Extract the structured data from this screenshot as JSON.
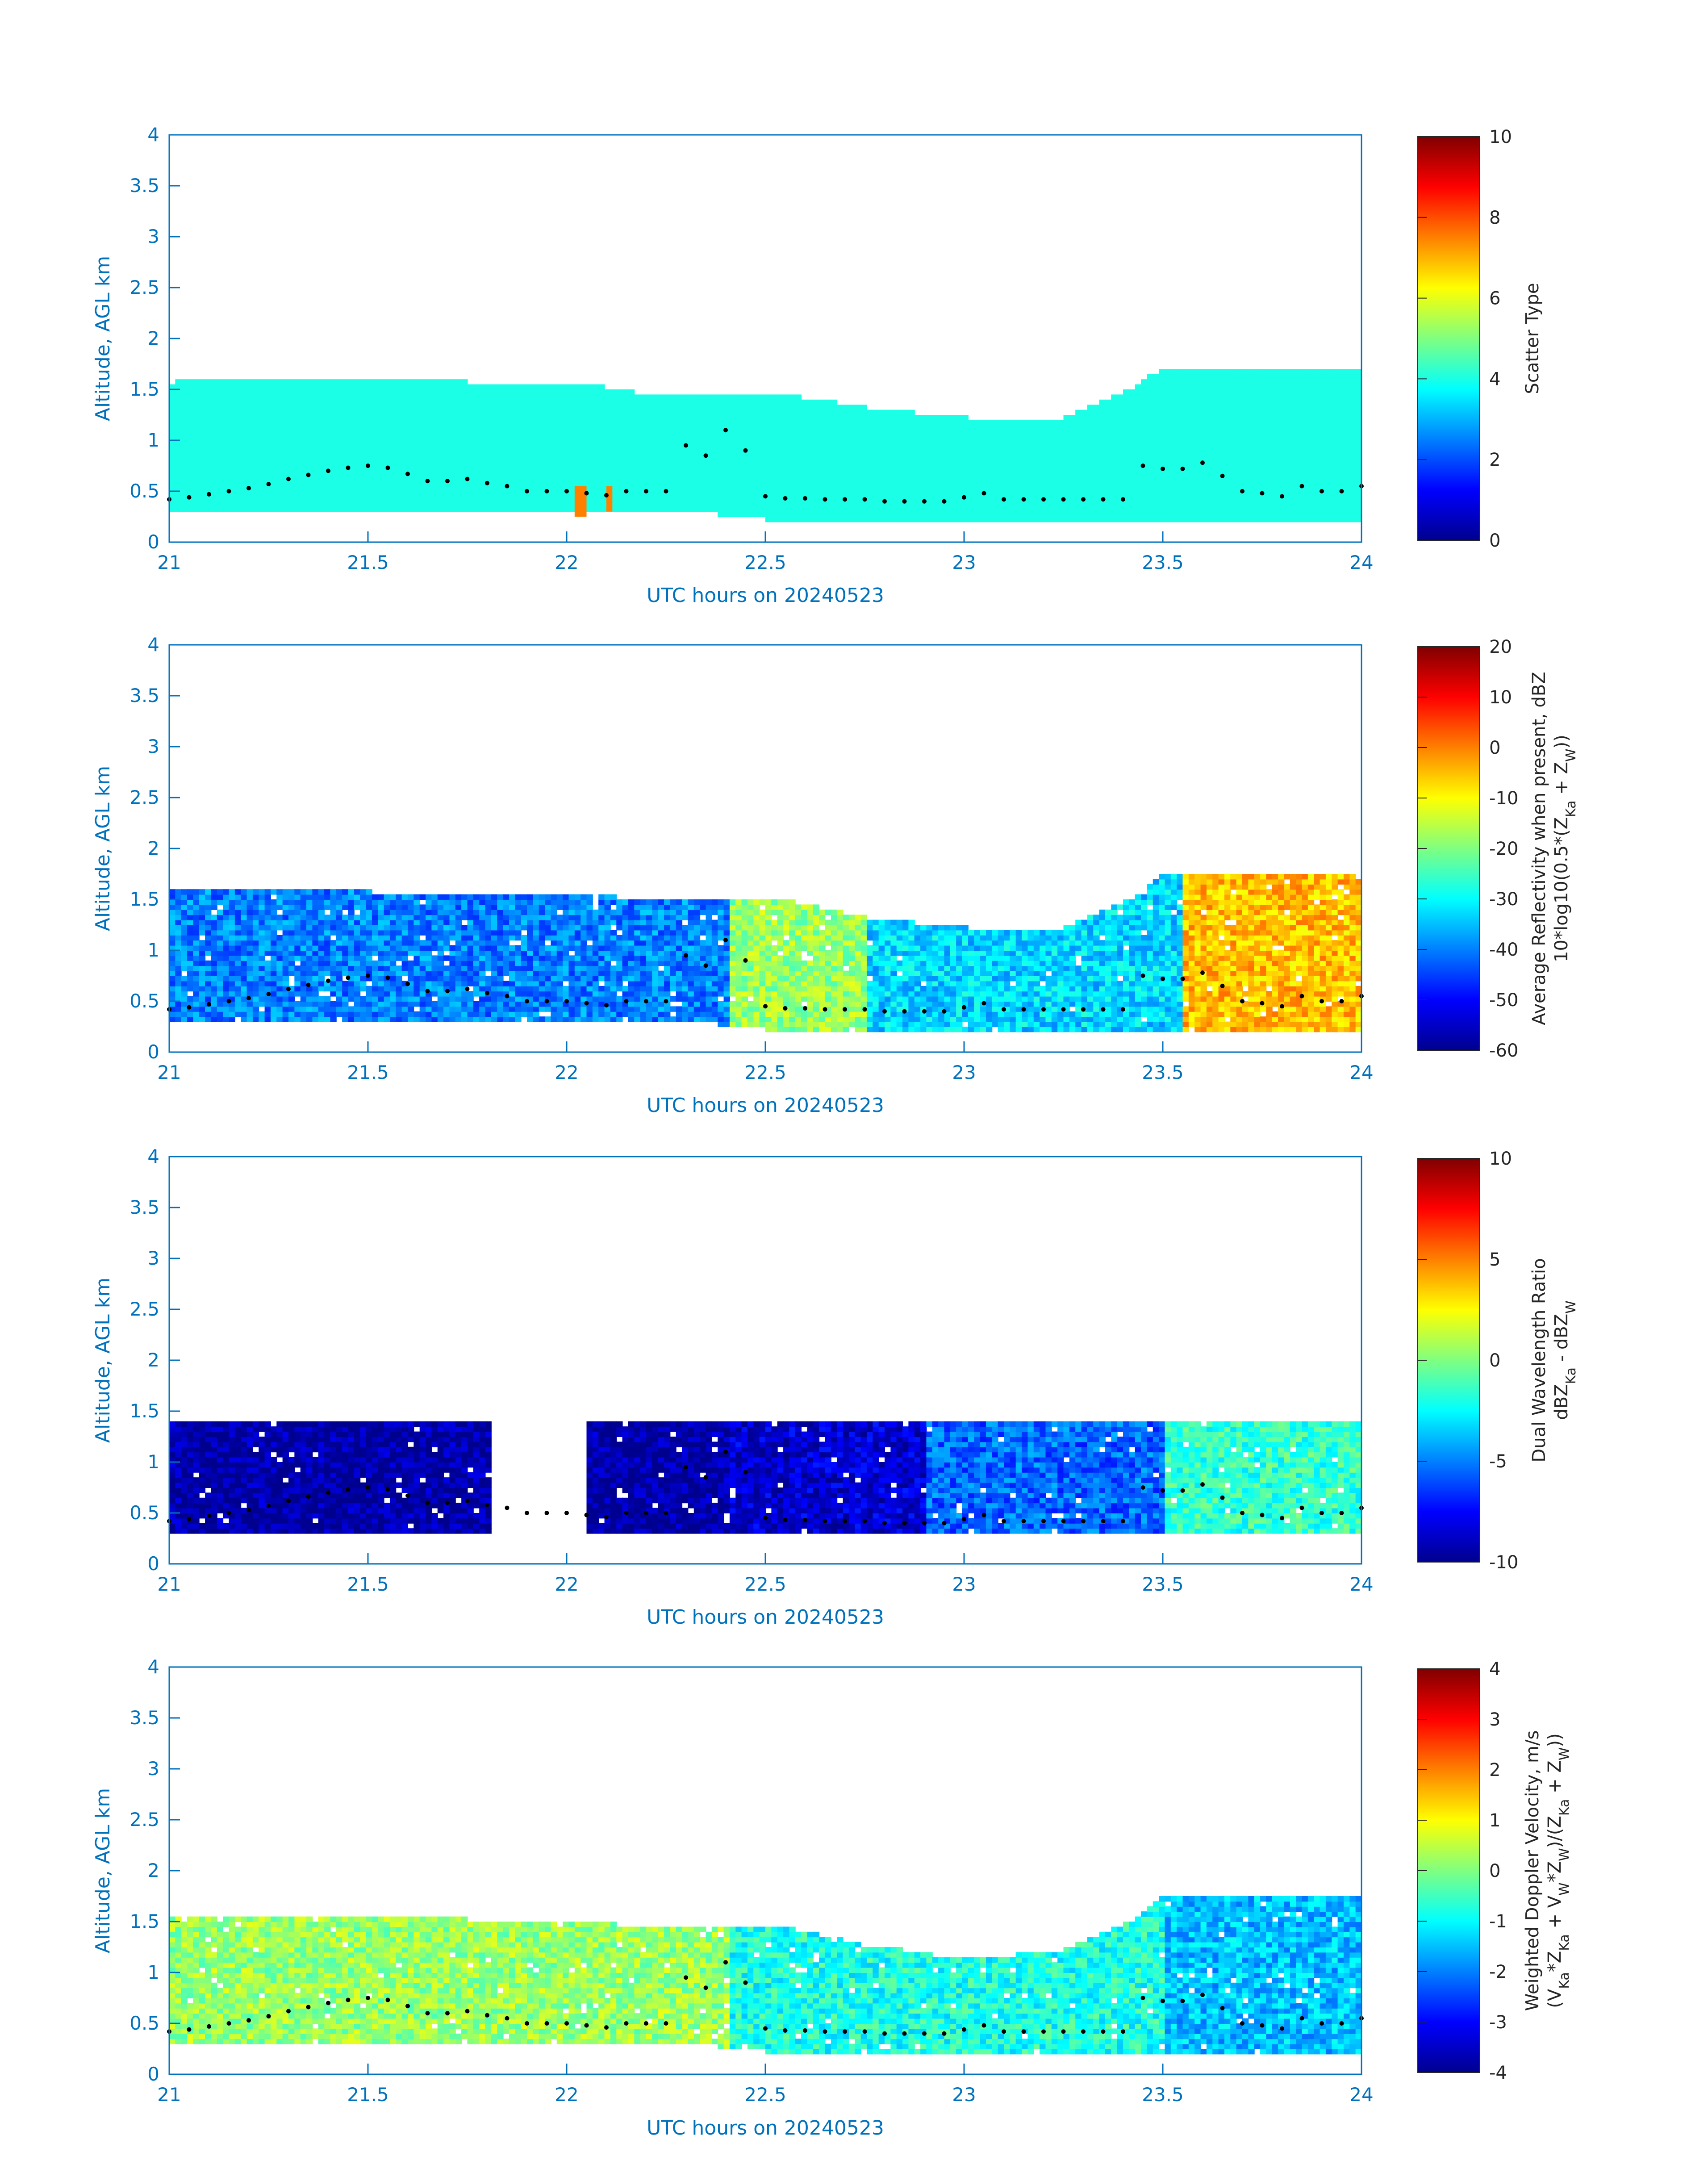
{
  "colors": {
    "axis": "#0072BD",
    "text": "#262626",
    "background": "#ffffff",
    "altitude_dots": "#000000",
    "colormap": [
      "#00008F",
      "#0000FF",
      "#0080FF",
      "#00FFFF",
      "#80FF80",
      "#FFFF00",
      "#FF8000",
      "#FF0000",
      "#800000"
    ]
  },
  "chart_data": [
    {
      "type": "heatmap",
      "name": "scatter-type",
      "xlabel": "UTC hours on 20240523",
      "ylabel": "Altitude, AGL km",
      "xlim": [
        21,
        24
      ],
      "ylim": [
        0,
        4
      ],
      "xticks": [
        "21",
        "21.5",
        "22",
        "22.5",
        "23",
        "23.5",
        "24"
      ],
      "yticks": [
        "0",
        "0.5",
        "1",
        "1.5",
        "2",
        "2.5",
        "3",
        "3.5",
        "4"
      ],
      "colorbar": {
        "title": "Scatter Type",
        "range": [
          0,
          10
        ],
        "ticks": [
          "0",
          "2",
          "4",
          "6",
          "8",
          "10"
        ]
      },
      "dominant_value": 4,
      "field_boundaries": {
        "x": [
          21.0,
          21.25,
          21.5,
          21.75,
          22.0,
          22.25,
          22.5,
          22.75,
          23.0,
          23.25,
          23.4,
          23.5,
          23.75,
          24.0
        ],
        "top_km": [
          1.55,
          1.6,
          1.6,
          1.55,
          1.55,
          1.4,
          1.45,
          1.3,
          1.2,
          1.2,
          1.45,
          1.7,
          1.7,
          1.7
        ],
        "base_km": [
          0.3,
          0.28,
          0.3,
          0.3,
          0.3,
          0.3,
          0.2,
          0.2,
          0.2,
          0.2,
          0.2,
          0.2,
          0.2,
          0.2
        ]
      },
      "highlight_cells": [
        {
          "x_start": 22.02,
          "x_end": 22.05,
          "y_start": 0.25,
          "y_end": 0.55,
          "value": 7.5
        },
        {
          "x_start": 22.1,
          "x_end": 22.115,
          "y_start": 0.3,
          "y_end": 0.55,
          "value": 7.5
        }
      ]
    },
    {
      "type": "heatmap",
      "name": "reflectivity",
      "xlabel": "UTC hours on 20240523",
      "ylabel": "Altitude, AGL km",
      "xlim": [
        21,
        24
      ],
      "ylim": [
        0,
        4
      ],
      "xticks": [
        "21",
        "21.5",
        "22",
        "22.5",
        "23",
        "23.5",
        "24"
      ],
      "yticks": [
        "0",
        "0.5",
        "1",
        "1.5",
        "2",
        "2.5",
        "3",
        "3.5",
        "4"
      ],
      "colorbar": {
        "title_line1": "Average Reflectivity when present, dBZ",
        "title_line2_main": "10*log10(0.5*(Z",
        "title_line2_sub1": "Ka",
        "title_line2_mid": " + Z",
        "title_line2_sub2": "W",
        "title_line2_end": "))",
        "range": [
          -60,
          20
        ],
        "ticks": [
          "-60",
          "-50",
          "-40",
          "-30",
          "-20",
          "-10",
          "0",
          "10",
          "20"
        ]
      },
      "field_boundaries": {
        "x": [
          21.0,
          21.25,
          21.5,
          21.75,
          22.0,
          22.25,
          22.5,
          22.75,
          23.0,
          23.25,
          23.4,
          23.5,
          23.75,
          24.0
        ],
        "top_km": [
          1.6,
          1.6,
          1.55,
          1.55,
          1.55,
          1.45,
          1.5,
          1.3,
          1.2,
          1.2,
          1.45,
          1.75,
          1.75,
          1.75
        ],
        "base_km": [
          0.3,
          0.28,
          0.3,
          0.3,
          0.3,
          0.3,
          0.2,
          0.2,
          0.2,
          0.2,
          0.2,
          0.2,
          0.2,
          0.2
        ]
      },
      "regions": [
        {
          "x_start": 21.0,
          "x_end": 22.4,
          "value": -40
        },
        {
          "x_start": 22.4,
          "x_end": 22.75,
          "value": -18
        },
        {
          "x_start": 22.75,
          "x_end": 23.55,
          "value": -33
        },
        {
          "x_start": 23.55,
          "x_end": 24.0,
          "value": -5
        }
      ]
    },
    {
      "type": "heatmap",
      "name": "dual-wavelength-ratio",
      "xlabel": "UTC hours on 20240523",
      "ylabel": "Altitude, AGL km",
      "xlim": [
        21,
        24
      ],
      "ylim": [
        0,
        4
      ],
      "xticks": [
        "21",
        "21.5",
        "22",
        "22.5",
        "23",
        "23.5",
        "24"
      ],
      "yticks": [
        "0",
        "0.5",
        "1",
        "1.5",
        "2",
        "2.5",
        "3",
        "3.5",
        "4"
      ],
      "colorbar": {
        "title_line1": "Dual Wavelength Ratio",
        "title_line2_a": "dBZ",
        "title_line2_sub1": "Ka",
        "title_line2_b": " - dBZ",
        "title_line2_sub2": "W",
        "range": [
          -10,
          10
        ],
        "ticks": [
          "-10",
          "-5",
          "0",
          "5",
          "10"
        ]
      },
      "regions": [
        {
          "x_start": 21.0,
          "x_end": 21.8,
          "value": -9.5
        },
        {
          "x_start": 22.05,
          "x_end": 22.4,
          "value": -9.5
        },
        {
          "x_start": 22.4,
          "x_end": 22.9,
          "value": -8.5
        },
        {
          "x_start": 22.9,
          "x_end": 23.5,
          "value": -5.5
        },
        {
          "x_start": 23.5,
          "x_end": 24.0,
          "value": -1.5
        }
      ]
    },
    {
      "type": "heatmap",
      "name": "doppler-velocity",
      "xlabel": "UTC hours on 20240523",
      "ylabel": "Altitude, AGL km",
      "xlim": [
        21,
        24
      ],
      "ylim": [
        0,
        4
      ],
      "xticks": [
        "21",
        "21.5",
        "22",
        "22.5",
        "23",
        "23.5",
        "24"
      ],
      "yticks": [
        "0",
        "0.5",
        "1",
        "1.5",
        "2",
        "2.5",
        "3",
        "3.5",
        "4"
      ],
      "colorbar": {
        "title_line1": "Weighted Doppler Velocity, m/s",
        "title_line2_a": "(V",
        "title_line2_sub1": "Ka",
        "title_line2_b": "*Z",
        "title_line2_sub2": "Ka",
        "title_line2_c": " + V",
        "title_line2_sub3": "W",
        "title_line2_d": "*Z",
        "title_line2_sub4": "W",
        "title_line2_e": ")/(Z",
        "title_line2_sub5": "Ka",
        "title_line2_f": " + Z",
        "title_line2_sub6": "W",
        "title_line2_g": "))",
        "range": [
          -4,
          4
        ],
        "ticks": [
          "-4",
          "-3",
          "-2",
          "-1",
          "0",
          "1",
          "2",
          "3",
          "4"
        ]
      },
      "field_boundaries": {
        "x": [
          21.0,
          21.25,
          21.5,
          21.75,
          22.0,
          22.25,
          22.5,
          22.75,
          23.0,
          23.25,
          23.4,
          23.5,
          23.75,
          24.0
        ],
        "top_km": [
          1.55,
          1.55,
          1.55,
          1.5,
          1.5,
          1.4,
          1.45,
          1.25,
          1.1,
          1.2,
          1.45,
          1.75,
          1.75,
          1.75
        ],
        "base_km": [
          0.3,
          0.28,
          0.3,
          0.3,
          0.3,
          0.3,
          0.2,
          0.2,
          0.2,
          0.2,
          0.2,
          0.2,
          0.2,
          0.2
        ]
      },
      "regions": [
        {
          "x_start": 21.0,
          "x_end": 22.4,
          "value": 0.2
        },
        {
          "x_start": 22.4,
          "x_end": 23.5,
          "value": -0.8
        },
        {
          "x_start": 23.5,
          "x_end": 24.0,
          "value": -1.5
        }
      ]
    }
  ],
  "altitude_dots": {
    "x": [
      21.0,
      21.05,
      21.1,
      21.15,
      21.2,
      21.25,
      21.3,
      21.35,
      21.4,
      21.45,
      21.5,
      21.55,
      21.6,
      21.65,
      21.7,
      21.75,
      21.8,
      21.85,
      21.9,
      21.95,
      22.0,
      22.05,
      22.1,
      22.15,
      22.2,
      22.25,
      22.3,
      22.35,
      22.4,
      22.45,
      22.5,
      22.55,
      22.6,
      22.65,
      22.7,
      22.75,
      22.8,
      22.85,
      22.9,
      22.95,
      23.0,
      23.05,
      23.1,
      23.15,
      23.2,
      23.25,
      23.3,
      23.35,
      23.4,
      23.45,
      23.5,
      23.55,
      23.6,
      23.65,
      23.7,
      23.75,
      23.8,
      23.85,
      23.9,
      23.95,
      24.0
    ],
    "y": [
      0.42,
      0.44,
      0.47,
      0.5,
      0.53,
      0.57,
      0.62,
      0.66,
      0.7,
      0.73,
      0.75,
      0.73,
      0.67,
      0.6,
      0.6,
      0.62,
      0.58,
      0.55,
      0.5,
      0.5,
      0.5,
      0.48,
      0.46,
      0.5,
      0.5,
      0.5,
      0.95,
      0.85,
      1.1,
      0.9,
      0.45,
      0.43,
      0.43,
      0.42,
      0.42,
      0.42,
      0.4,
      0.4,
      0.4,
      0.4,
      0.44,
      0.48,
      0.42,
      0.42,
      0.42,
      0.42,
      0.42,
      0.42,
      0.42,
      0.75,
      0.72,
      0.72,
      0.78,
      0.65,
      0.5,
      0.48,
      0.45,
      0.55,
      0.5,
      0.5,
      0.55
    ]
  }
}
